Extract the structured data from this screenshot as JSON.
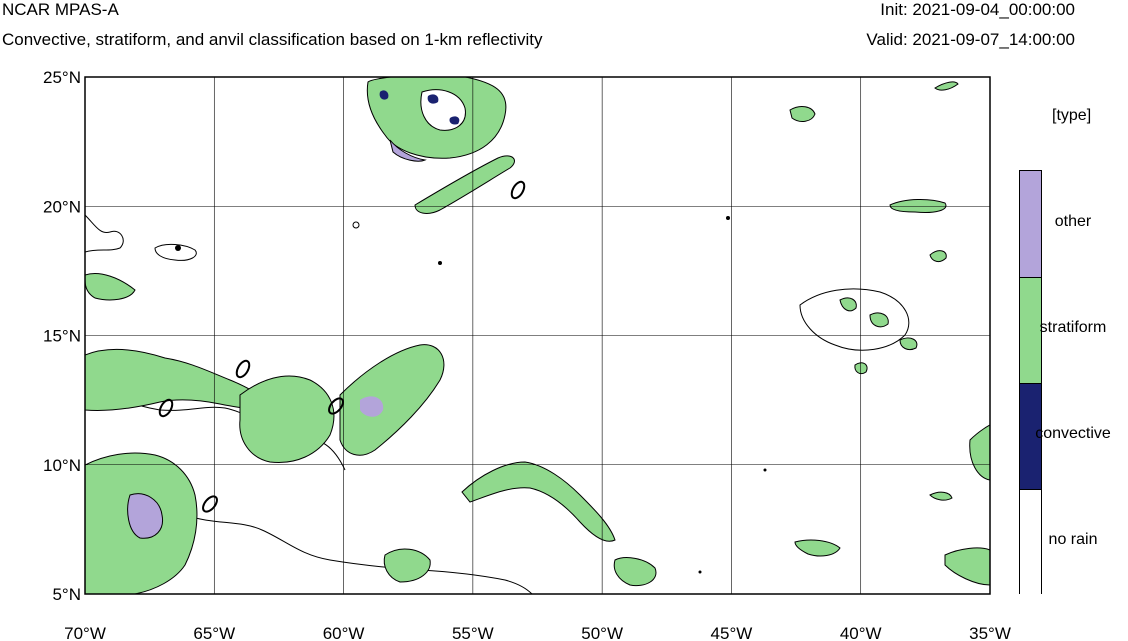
{
  "header": {
    "model": "NCAR MPAS-A",
    "subtitle": "Convective, stratiform, and anvil classification based on 1-km reflectivity",
    "init": "Init: 2021-09-04_00:00:00",
    "valid": "Valid: 2021-09-07_14:00:00"
  },
  "map": {
    "lon_range": [
      -70,
      -35
    ],
    "lat_range": [
      5,
      25
    ],
    "lat_ticks": [
      "25°N",
      "20°N",
      "15°N",
      "10°N",
      "5°N"
    ],
    "lon_ticks": [
      "70°W",
      "65°W",
      "60°W",
      "55°W",
      "50°W",
      "45°W",
      "40°W",
      "35°W"
    ]
  },
  "legend": {
    "title": "[type]",
    "items": [
      {
        "label": "other",
        "color": "#b3a4da"
      },
      {
        "label": "stratiform",
        "color": "#90d98d"
      },
      {
        "label": "convective",
        "color": "#1a2270"
      },
      {
        "label": "no rain",
        "color": "#ffffff"
      }
    ]
  }
}
